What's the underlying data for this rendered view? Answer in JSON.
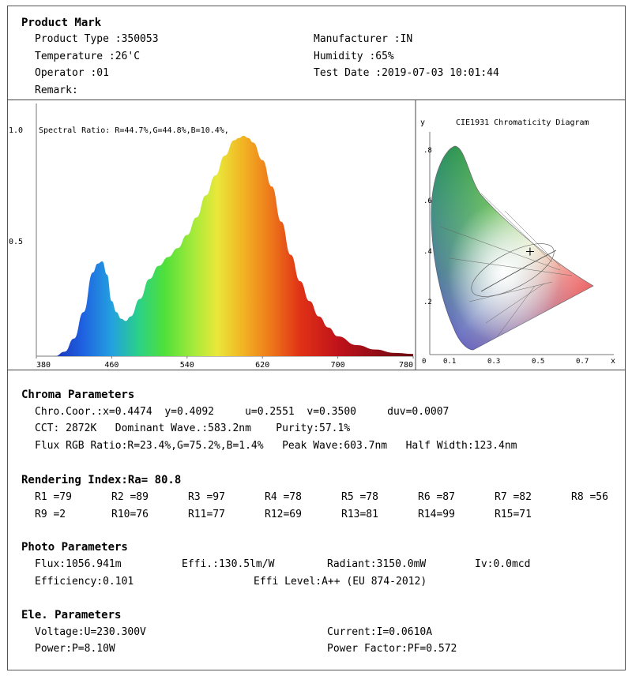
{
  "product_mark": {
    "heading": "Product Mark",
    "product_type": "Product Type :350053",
    "manufacturer": "Manufacturer :IN",
    "temperature": "Temperature :26'C",
    "humidity": "Humidity :65%",
    "operator": "Operator :01",
    "test_date": "Test Date :2019-07-03 10:01:44",
    "remark": "Remark:"
  },
  "spectrum": {
    "ratio_label": "Spectral Ratio:  R=44.7%,G=44.8%,B=10.4%,",
    "y_ticks": [
      "1.0",
      "0.5"
    ],
    "x_ticks": [
      "380",
      "460",
      "540",
      "620",
      "700",
      "780"
    ]
  },
  "chart_data": [
    {
      "type": "area",
      "title": "Spectral Ratio:  R=44.7%,G=44.8%,B=10.4%,",
      "xlabel": "",
      "ylabel": "",
      "xlim": [
        380,
        780
      ],
      "ylim": [
        0,
        1.0
      ],
      "x": [
        380,
        400,
        410,
        420,
        430,
        440,
        445,
        450,
        455,
        460,
        465,
        470,
        475,
        480,
        490,
        500,
        510,
        520,
        530,
        540,
        550,
        560,
        570,
        580,
        590,
        595,
        600,
        605,
        610,
        620,
        630,
        640,
        650,
        660,
        670,
        680,
        690,
        700,
        720,
        740,
        760,
        780
      ],
      "series": [
        {
          "values": [
            0.0,
            0.0,
            0.02,
            0.08,
            0.2,
            0.38,
            0.42,
            0.43,
            0.37,
            0.25,
            0.2,
            0.17,
            0.16,
            0.18,
            0.26,
            0.35,
            0.41,
            0.45,
            0.49,
            0.55,
            0.63,
            0.73,
            0.82,
            0.91,
            0.98,
            0.99,
            1.0,
            0.99,
            0.97,
            0.89,
            0.77,
            0.61,
            0.46,
            0.34,
            0.25,
            0.18,
            0.13,
            0.09,
            0.05,
            0.03,
            0.015,
            0.01
          ]
        }
      ],
      "grid": false,
      "legend": "none"
    },
    {
      "type": "scatter",
      "title": "CIE1931 Chromaticity Diagram",
      "xlabel": "x",
      "ylabel": "y",
      "xlim": [
        0,
        0.8
      ],
      "ylim": [
        0,
        0.9
      ],
      "x_ticks": [
        "0",
        "0.1",
        ".3",
        ".5",
        ".7"
      ],
      "y_ticks": [
        ".8",
        ".6",
        ".4",
        ".2"
      ],
      "points": [
        {
          "x": 0.4474,
          "y": 0.4092
        }
      ],
      "grid": false,
      "legend": "none"
    }
  ],
  "cie": {
    "title": "CIE1931 Chromaticity Diagram",
    "y_axis": "y",
    "x_axis": "x",
    "y_ticks": [
      ".8",
      ".6",
      ".4",
      ".2"
    ],
    "x_ticks": [
      "0",
      "0.1",
      "0.3",
      "0.5",
      "0.7"
    ]
  },
  "chroma": {
    "heading": "Chroma Parameters",
    "line1": "Chro.Coor.:x=0.4474  y=0.4092     u=0.2551  v=0.3500     duv=0.0007",
    "line2": "CCT: 2872K   Dominant Wave.:583.2nm    Purity:57.1%",
    "line3": "Flux RGB Ratio:R=23.4%,G=75.2%,B=1.4%   Peak Wave:603.7nm   Half Width:123.4nm"
  },
  "rendering": {
    "heading": "Rendering Index:Ra= 80.8",
    "row1": [
      "R1 =79",
      "R2 =89",
      "R3 =97",
      "R4 =78",
      "R5 =78",
      "R6 =87",
      "R7 =82",
      "R8 =56"
    ],
    "row2": [
      "R9 =2",
      "R10=76",
      "R11=77",
      "R12=69",
      "R13=81",
      "R14=99",
      "R15=71"
    ]
  },
  "photo": {
    "heading": "Photo Parameters",
    "flux": "Flux:1056.941m",
    "effi": "Effi.:130.5lm/W",
    "radiant": "Radiant:3150.0mW",
    "iv": "Iv:0.0mcd",
    "efficiency": "Efficiency:0.101",
    "effi_level": "Effi Level:A++ (EU 874-2012)"
  },
  "ele": {
    "heading": "Ele. Parameters",
    "voltage": "Voltage:U=230.300V",
    "current": "Current:I=0.0610A",
    "power": "Power:P=8.10W",
    "pf": "Power Factor:PF=0.572"
  }
}
